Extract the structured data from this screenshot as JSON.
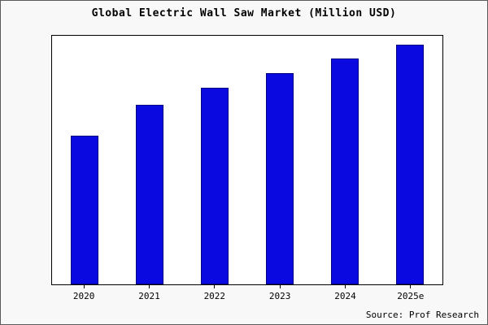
{
  "title": "Global Electric Wall Saw Market (Million USD)",
  "source": "Source: Prof Research",
  "colors": {
    "bar_fill": "#0a0ae0",
    "bar_border": "#000080",
    "plot_background": "#ffffff",
    "page_background": "#f8f8f8"
  },
  "chart_data": {
    "type": "bar",
    "categories": [
      "2020",
      "2021",
      "2022",
      "2023",
      "2024",
      "2025e"
    ],
    "values": [
      62,
      75,
      82,
      88,
      94,
      100
    ],
    "title": "Global Electric Wall Saw Market (Million USD)",
    "xlabel": "",
    "ylabel": "",
    "ylim": [
      0,
      104
    ],
    "grid": false,
    "legend": false,
    "source": "Source: Prof Research"
  }
}
